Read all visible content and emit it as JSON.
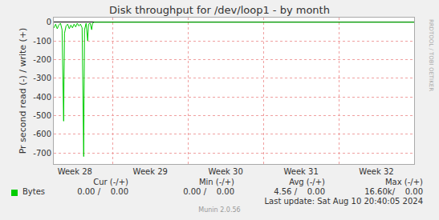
{
  "chart_data": {
    "type": "line",
    "title": "Disk throughput for /dev/loop1 - by month",
    "y_label": "Pr second read (-) / write (+)",
    "x": [
      28.223,
      28.245,
      28.266,
      28.287,
      28.309,
      28.33,
      28.351,
      28.362,
      28.383,
      28.404,
      28.426,
      28.447,
      28.468,
      28.489,
      28.511,
      28.532,
      28.553,
      28.574,
      28.596,
      28.617,
      28.628,
      28.649,
      28.67,
      28.681,
      28.702,
      28.723,
      28.734,
      28.755,
      33.0
    ],
    "series": [
      {
        "name": "Bytes",
        "color": "#00cc00",
        "values": [
          -30,
          -10,
          -35,
          -15,
          -5,
          -40,
          -530,
          -60,
          -20,
          -10,
          -35,
          -15,
          -30,
          -10,
          -25,
          -5,
          -20,
          -10,
          -30,
          -720,
          -40,
          -5,
          -100,
          -10,
          -5,
          -40,
          -5,
          0,
          0
        ]
      }
    ],
    "xlim": [
      28.22,
      33.0
    ],
    "xticks": [
      {
        "value": 28.5,
        "label": "Week 28"
      },
      {
        "value": 29.5,
        "label": "Week 29"
      },
      {
        "value": 30.5,
        "label": "Week 30"
      },
      {
        "value": 31.5,
        "label": "Week 31"
      },
      {
        "value": 32.5,
        "label": "Week 32"
      }
    ],
    "ylim": [
      -760,
      25
    ],
    "yticks": [
      0,
      -100,
      -200,
      -300,
      -400,
      -500,
      -600,
      -700
    ],
    "grid": true,
    "legend": "bottom",
    "watermark": "RRDTOOL / TOBI OETIKER",
    "summary": {
      "columns": [
        "Cur (-/+)",
        "Min (-/+)",
        "Avg (-/+)",
        "Max (-/+)"
      ],
      "rows": [
        [
          "0.00 /    0.00",
          "0.00 /    0.00",
          "4.56 /    0.00",
          "16.60k/    0.00"
        ]
      ]
    },
    "last_update": "Last update: Sat Aug 10 20:40:05 2024",
    "footer": "Munin 2.0.56"
  }
}
